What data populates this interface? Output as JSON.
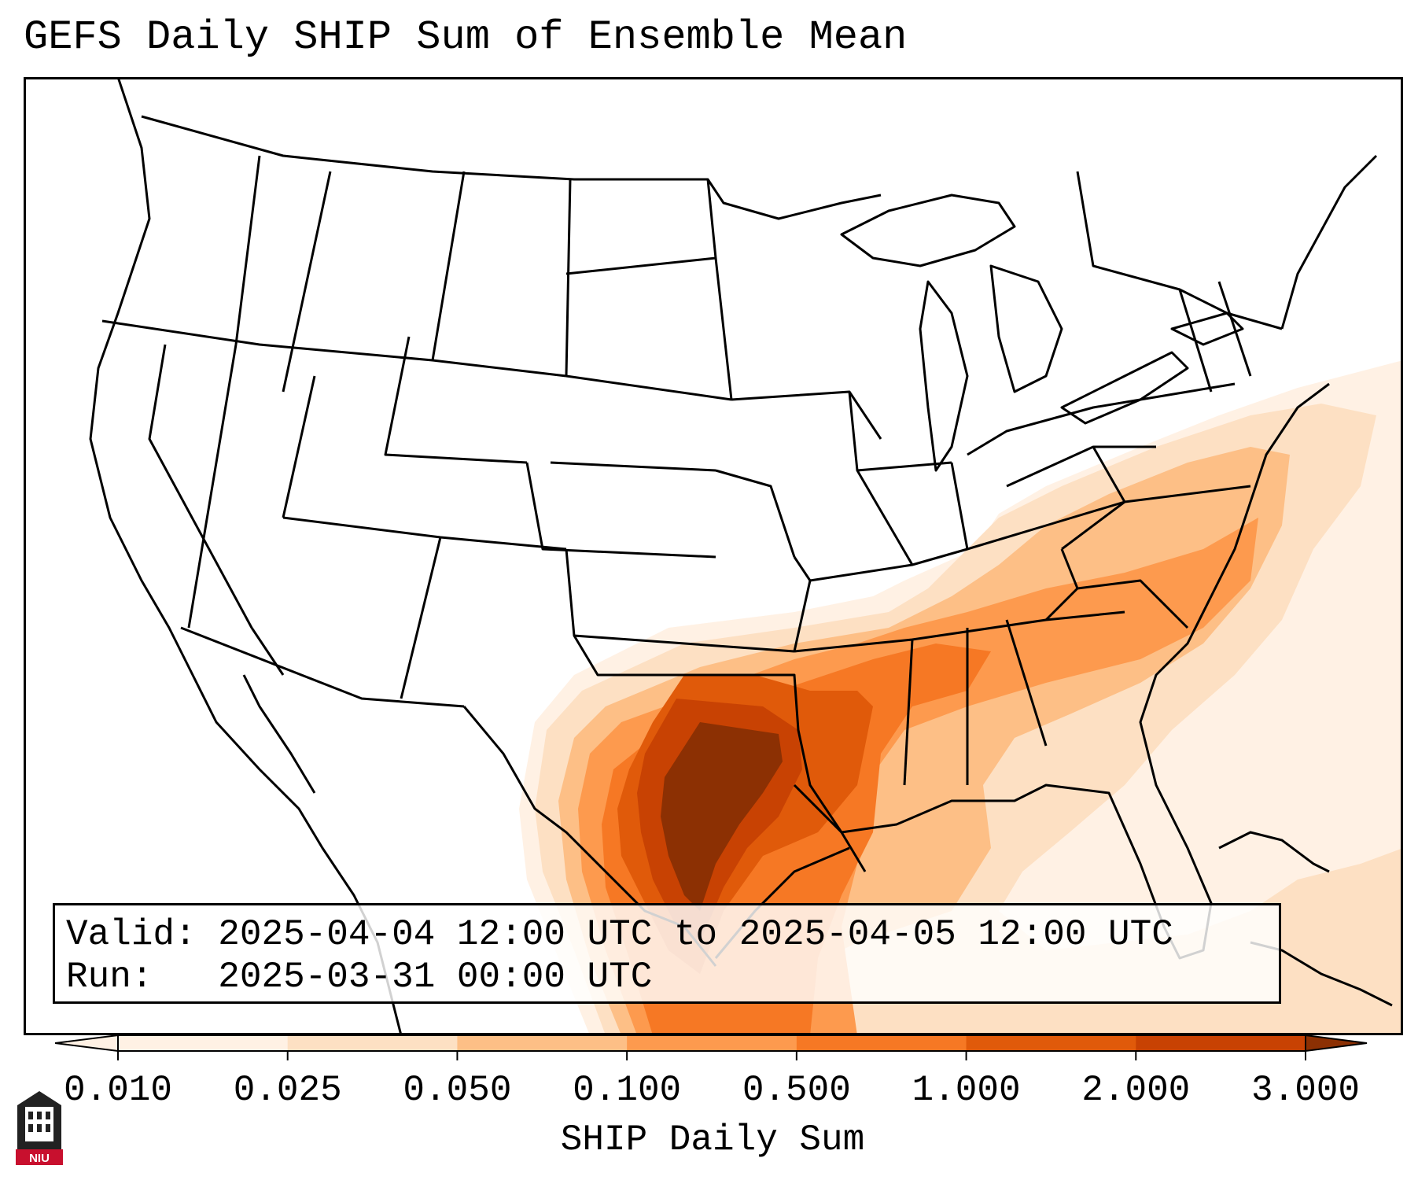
{
  "title": "GEFS Daily SHIP Sum of Ensemble Mean",
  "info": {
    "valid_label": "Valid:",
    "valid_value": "2025-04-04 12:00 UTC to 2025-04-05 12:00 UTC",
    "run_label": "Run:",
    "run_value": "2025-03-31 00:00 UTC"
  },
  "colorbar": {
    "label": "SHIP Daily Sum",
    "ticks": [
      "0.010",
      "0.025",
      "0.050",
      "0.100",
      "0.500",
      "1.000",
      "2.000",
      "3.000"
    ],
    "colors": [
      "#fff1e4",
      "#fde0c3",
      "#fdbf86",
      "#fd9a4e",
      "#f67824",
      "#e05a0a",
      "#c84203",
      "#8c3003"
    ],
    "extend": "both"
  },
  "logo": {
    "text": "NIU",
    "colors": {
      "red": "#c8102e",
      "black": "#222222"
    }
  },
  "colors": {
    "background": "#ffffff",
    "borders": "#000000"
  }
}
